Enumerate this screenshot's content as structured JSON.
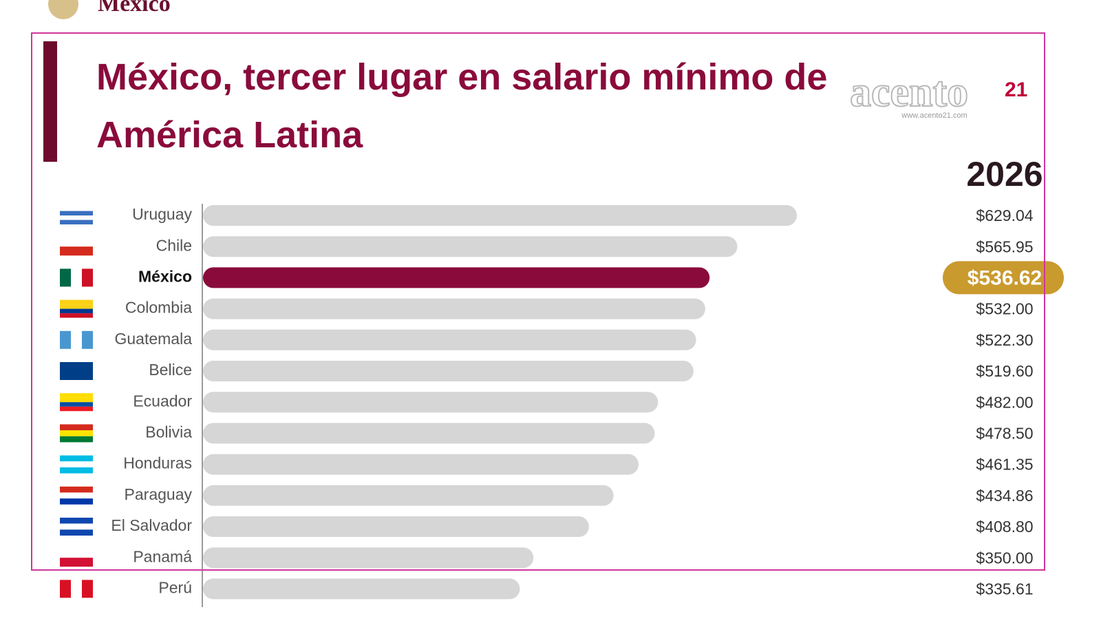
{
  "header_text": "México",
  "watermark": {
    "name": "acento",
    "number": "21",
    "url": "www.acento21.com"
  },
  "chart_data": {
    "type": "bar",
    "orientation": "horizontal",
    "title": "México, tercer lugar en salario mínimo de América Latina",
    "column_header": "2026",
    "categories": [
      "Uruguay",
      "Chile",
      "México",
      "Colombia",
      "Guatemala",
      "Belice",
      "Ecuador",
      "Bolivia",
      "Honduras",
      "Paraguay",
      "El Salvador",
      "Panamá",
      "Perú"
    ],
    "values": [
      629.04,
      565.95,
      536.62,
      532.0,
      522.3,
      519.6,
      482.0,
      478.5,
      461.35,
      434.86,
      408.8,
      350.0,
      335.61
    ],
    "value_labels": [
      "$629.04",
      "$565.95",
      "$536.62",
      "$532.00",
      "$522.30",
      "$519.60",
      "$482.00",
      "$478.50",
      "$461.35",
      "$434.86",
      "$408.80",
      "$350.00",
      "$335.61"
    ],
    "color": "#d6d6d6",
    "highlight": {
      "index": 2,
      "bar_color": "#8a0b3b",
      "label_color": "#c99a2e"
    }
  }
}
